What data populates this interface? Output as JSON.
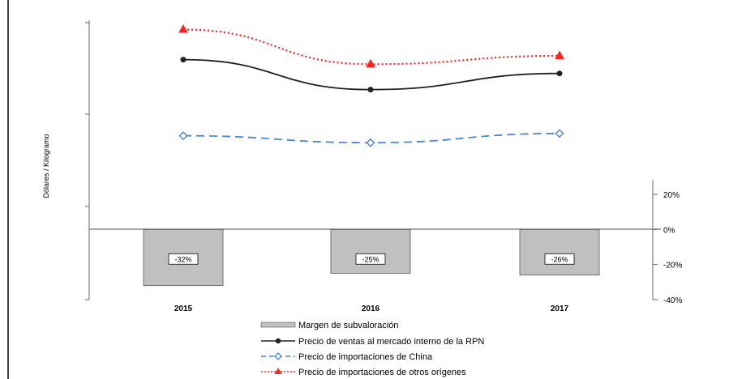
{
  "chart_data": {
    "type": "line",
    "ylabel": "Dólares / Kilogramo",
    "categories": [
      "2015",
      "2016",
      "2017"
    ],
    "series": [
      {
        "name": "Margen de subvaloración",
        "kind": "bar",
        "axis": "right",
        "values": [
          -32,
          -25,
          -26
        ],
        "labels": [
          "-32%",
          "-25%",
          "-26%"
        ],
        "color": "#c0c0c0"
      },
      {
        "name": "Precio de ventas al mercado interno de la RPN",
        "kind": "line",
        "values": [
          3.7,
          3.05,
          3.4
        ],
        "color": "#222222"
      },
      {
        "name": "Precio de importaciones de China",
        "kind": "line",
        "values": [
          2.05,
          1.9,
          2.1
        ],
        "color": "#4a86d6"
      },
      {
        "name": "Precio de importaciones de otros orígenes",
        "kind": "line",
        "values": [
          4.35,
          3.6,
          3.78
        ],
        "color": "#ff2020"
      }
    ],
    "y2": {
      "ticks": [
        "20%",
        "0%",
        "-20%",
        "-40%"
      ],
      "values": [
        20,
        0,
        -20,
        -40
      ]
    },
    "ylim": [
      -1.5,
      4.5
    ],
    "y2lim": [
      -40,
      20
    ],
    "grid": false,
    "legend": "bottom-center"
  }
}
